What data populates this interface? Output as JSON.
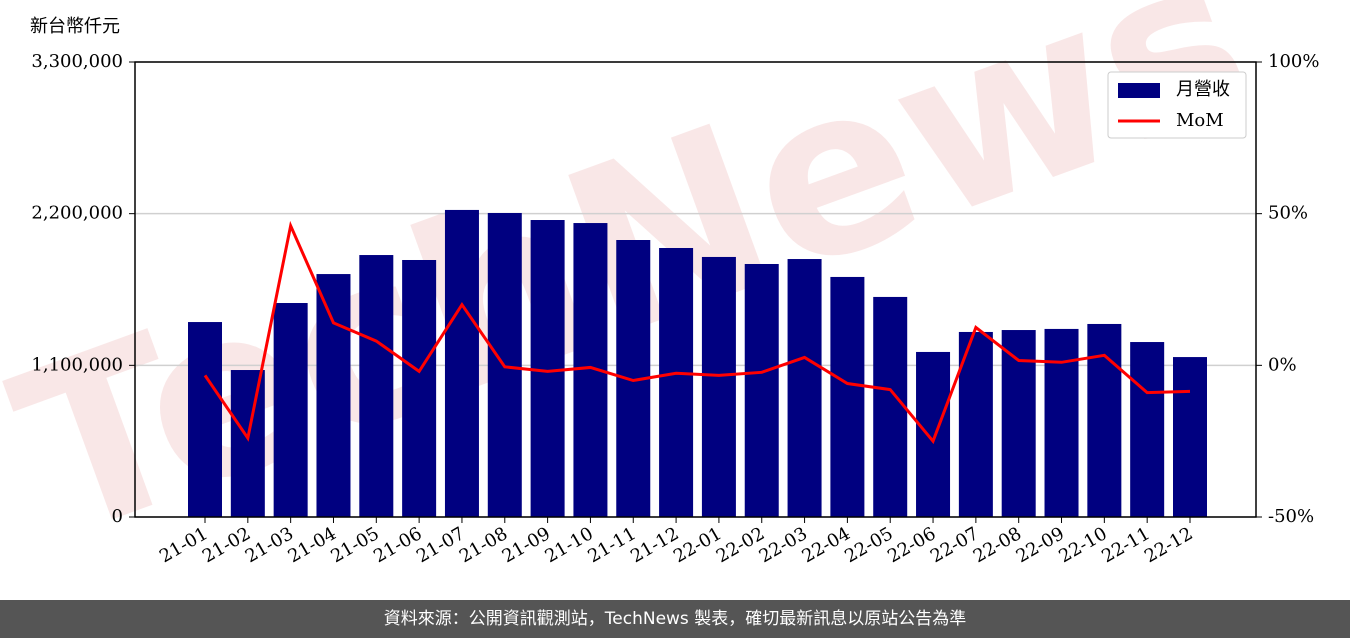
{
  "chart_data": {
    "type": "bar_line",
    "y_label": "新台幣仟元",
    "watermark": "TechNews",
    "categories": [
      "21-01",
      "21-02",
      "21-03",
      "21-04",
      "21-05",
      "21-06",
      "21-07",
      "21-08",
      "21-09",
      "21-10",
      "21-11",
      "21-12",
      "22-01",
      "22-02",
      "22-03",
      "22-04",
      "22-05",
      "22-06",
      "22-07",
      "22-08",
      "22-09",
      "22-10",
      "22-11",
      "22-12"
    ],
    "series": [
      {
        "name": "月營收",
        "type": "bar",
        "color": "#000080",
        "values": [
          1414000,
          1066000,
          1552000,
          1762000,
          1900000,
          1864000,
          2227000,
          2205000,
          2154000,
          2132000,
          2009000,
          1951000,
          1886000,
          1835000,
          1871000,
          1741000,
          1596000,
          1197000,
          1342000,
          1356000,
          1364000,
          1400000,
          1269000,
          1160000
        ]
      },
      {
        "name": "MoM",
        "type": "line",
        "axis": "y2",
        "color": "#ff0000",
        "values": [
          -3.3,
          -24,
          46,
          14,
          8,
          -2,
          20,
          -0.5,
          -2,
          -0.7,
          -5,
          -2.6,
          -3.3,
          -2.3,
          2.6,
          -6,
          -8,
          -25,
          12.5,
          1.6,
          1,
          3.3,
          -9,
          -8.6
        ]
      }
    ],
    "ylim": [
      0,
      3300000
    ],
    "yticks": [
      0,
      {
        "value": 1100000,
        "label": "1,100,000"
      },
      {
        "value": 2200000,
        "label": "2,200,000"
      },
      {
        "value": 3300000,
        "label": "3,300,000"
      }
    ],
    "y2lim": [
      -50,
      100
    ],
    "y2ticks": [
      {
        "value": -50,
        "label": "-50%"
      },
      {
        "value": 0,
        "label": "0%"
      },
      {
        "value": 50,
        "label": "50%"
      },
      {
        "value": 100,
        "label": "100%"
      }
    ],
    "grid": true,
    "legend": "upper right"
  },
  "footer": "資料來源：公開資訊觀測站，TechNews 製表，確切最新訊息以原站公告為準"
}
